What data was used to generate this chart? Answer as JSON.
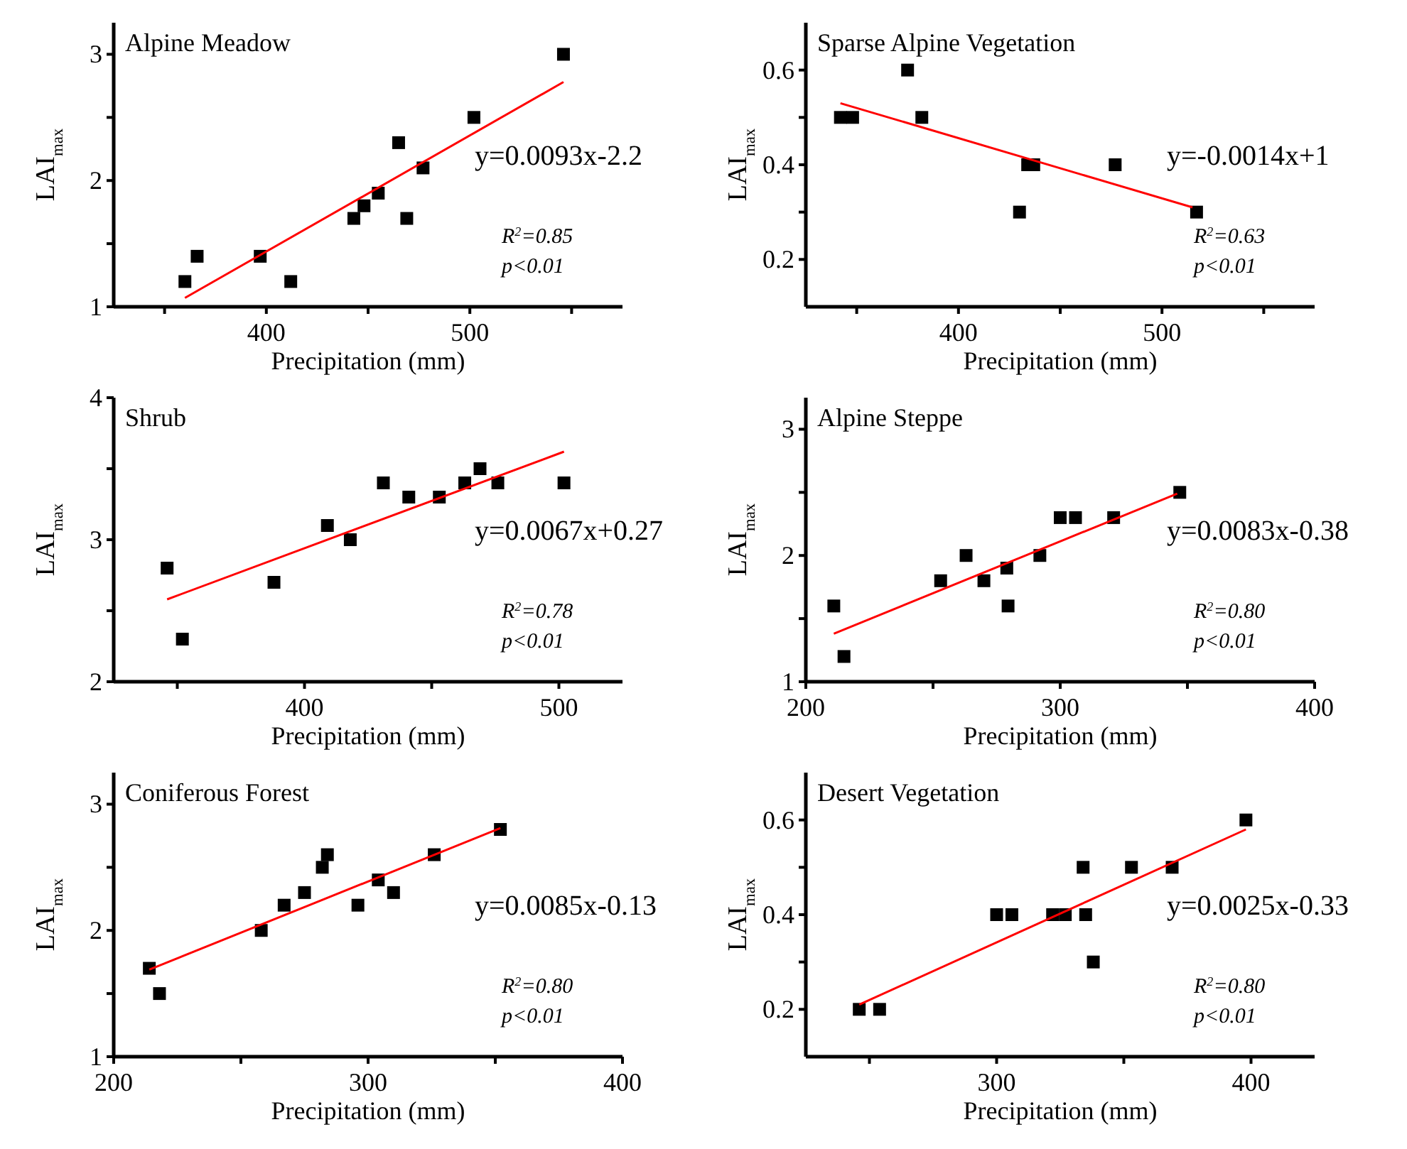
{
  "chart_data": [
    {
      "type": "scatter",
      "title": "Alpine Meadow",
      "xlabel": "Precipitation (mm)",
      "ylabel": "LAI$_{max}$",
      "xlim": [
        325,
        575
      ],
      "xticks": [
        {
          "value": 350,
          "label": null
        },
        400,
        {
          "value": 450,
          "label": null
        },
        500,
        {
          "value": 550,
          "label": null
        }
      ],
      "ylim": [
        1,
        3.25
      ],
      "yticks": [
        1,
        {
          "value": 1.5,
          "label": null
        },
        2,
        {
          "value": 2.5,
          "label": null
        },
        3
      ],
      "annotations": [
        "y=0.0093x-2.2",
        "R$^{2}$=0.85",
        "p<0.01"
      ],
      "series": [
        {
          "color": "#000000",
          "marker": "square",
          "x": [
            360,
            366,
            397,
            412,
            443,
            448,
            455,
            465,
            469,
            477,
            502,
            546
          ],
          "values": [
            1.2,
            1.4,
            1.4,
            1.2,
            1.7,
            1.8,
            1.9,
            2.3,
            1.7,
            2.1,
            2.5,
            3.0
          ]
        },
        {
          "type": "line",
          "color": "#ff0000",
          "x": [
            360,
            546
          ],
          "values": [
            1.07,
            2.78
          ]
        }
      ]
    },
    {
      "type": "scatter",
      "title": "Sparse Alpine Vegetation",
      "xlabel": "Precipitation (mm)",
      "ylabel": "LAI$_{max}$",
      "xlim": [
        325,
        575
      ],
      "xticks": [
        {
          "value": 350,
          "label": null
        },
        400,
        {
          "value": 450,
          "label": null
        },
        500,
        {
          "value": 550,
          "label": null
        }
      ],
      "ylim": [
        0.1,
        0.7
      ],
      "yticks": [
        0.2,
        {
          "value": 0.3,
          "label": null
        },
        0.4,
        {
          "value": 0.5,
          "label": null
        },
        0.6
      ],
      "annotations": [
        "y=-0.0014x+1",
        "R$^{2}$=0.63",
        "p<0.01"
      ],
      "series": [
        {
          "color": "#000000",
          "marker": "square",
          "x": [
            342,
            348,
            375,
            382,
            430,
            434,
            437,
            477,
            517
          ],
          "values": [
            0.5,
            0.5,
            0.6,
            0.5,
            0.3,
            0.4,
            0.4,
            0.4,
            0.3
          ]
        },
        {
          "type": "line",
          "color": "#ff0000",
          "x": [
            342,
            515
          ],
          "values": [
            0.53,
            0.31
          ]
        }
      ]
    },
    {
      "type": "scatter",
      "title": "Shrub",
      "xlabel": "Precipitation (mm)",
      "ylabel": "LAI$_{max}$",
      "xlim": [
        325,
        525
      ],
      "xticks": [
        {
          "value": 350,
          "label": null
        },
        400,
        {
          "value": 450,
          "label": null
        },
        500
      ],
      "ylim": [
        2,
        4
      ],
      "yticks": [
        2,
        {
          "value": 2.5,
          "label": null
        },
        3,
        {
          "value": 3.5,
          "label": null
        },
        4
      ],
      "annotations": [
        "y=0.0067x+0.27",
        "R$^{2}$=0.78",
        "p<0.01"
      ],
      "series": [
        {
          "color": "#000000",
          "marker": "square",
          "x": [
            346,
            352,
            388,
            409,
            418,
            431,
            441,
            453,
            463,
            469,
            476,
            502
          ],
          "values": [
            2.8,
            2.3,
            2.7,
            3.1,
            3.0,
            3.4,
            3.3,
            3.3,
            3.4,
            3.5,
            3.4,
            3.4
          ]
        },
        {
          "type": "line",
          "color": "#ff0000",
          "x": [
            346,
            502
          ],
          "values": [
            2.58,
            3.62
          ]
        }
      ]
    },
    {
      "type": "scatter",
      "title": "Alpine Steppe",
      "xlabel": "Precipitation (mm)",
      "ylabel": "LAI$_{max}$",
      "xlim": [
        200,
        400
      ],
      "xticks": [
        200,
        {
          "value": 250,
          "label": null
        },
        300,
        {
          "value": 350,
          "label": null
        },
        400
      ],
      "ylim": [
        1,
        3.25
      ],
      "yticks": [
        1,
        {
          "value": 1.5,
          "label": null
        },
        2,
        {
          "value": 2.5,
          "label": null
        },
        3
      ],
      "annotations": [
        "y=0.0083x-0.38",
        "R$^{2}$=0.80",
        "p<0.01"
      ],
      "series": [
        {
          "color": "#000000",
          "marker": "square",
          "x": [
            211,
            215,
            253,
            263,
            270,
            279,
            279.5,
            292,
            300,
            306,
            321,
            347
          ],
          "values": [
            1.6,
            1.2,
            1.8,
            2.0,
            1.8,
            1.9,
            1.6,
            2.0,
            2.3,
            2.3,
            2.3,
            2.5
          ]
        },
        {
          "type": "line",
          "color": "#ff0000",
          "x": [
            211,
            346
          ],
          "values": [
            1.38,
            2.49
          ]
        }
      ]
    },
    {
      "type": "scatter",
      "title": "Coniferous Forest",
      "xlabel": "Precipitation (mm)",
      "ylabel": "LAI$_{max}$",
      "xlim": [
        200,
        400
      ],
      "xticks": [
        200,
        {
          "value": 250,
          "label": null
        },
        300,
        {
          "value": 350,
          "label": null
        },
        400
      ],
      "ylim": [
        1,
        3.25
      ],
      "yticks": [
        1,
        {
          "value": 1.5,
          "label": null
        },
        2,
        {
          "value": 2.5,
          "label": null
        },
        3
      ],
      "annotations": [
        "y=0.0085x-0.13",
        "R$^{2}$=0.80",
        "p<0.01"
      ],
      "series": [
        {
          "color": "#000000",
          "marker": "square",
          "x": [
            214,
            218,
            258,
            267,
            275,
            282,
            284,
            296,
            304,
            310,
            326,
            352
          ],
          "values": [
            1.7,
            1.5,
            2.0,
            2.2,
            2.3,
            2.5,
            2.6,
            2.2,
            2.4,
            2.3,
            2.6,
            2.8
          ]
        },
        {
          "type": "line",
          "color": "#ff0000",
          "x": [
            214,
            352
          ],
          "values": [
            1.69,
            2.81
          ]
        }
      ]
    },
    {
      "type": "scatter",
      "title": "Desert Vegetation",
      "xlabel": "Precipitation (mm)",
      "ylabel": "LAI$_{max}$",
      "xlim": [
        225,
        425
      ],
      "xticks": [
        {
          "value": 250,
          "label": null
        },
        300,
        {
          "value": 350,
          "label": null
        },
        400
      ],
      "ylim": [
        0.1,
        0.7
      ],
      "yticks": [
        0.2,
        {
          "value": 0.3,
          "label": null
        },
        0.4,
        {
          "value": 0.5,
          "label": null
        },
        0.6
      ],
      "annotations": [
        "y=0.0025x-0.33",
        "R$^{2}$=0.80",
        "p<0.01"
      ],
      "series": [
        {
          "color": "#000000",
          "marker": "square",
          "x": [
            246,
            254,
            300,
            306,
            322,
            327,
            334,
            335,
            338,
            353,
            369,
            398
          ],
          "values": [
            0.2,
            0.2,
            0.4,
            0.4,
            0.4,
            0.4,
            0.5,
            0.4,
            0.3,
            0.5,
            0.5,
            0.6
          ]
        },
        {
          "type": "line",
          "color": "#ff0000",
          "x": [
            246,
            398
          ],
          "values": [
            0.21,
            0.58
          ]
        }
      ]
    }
  ]
}
